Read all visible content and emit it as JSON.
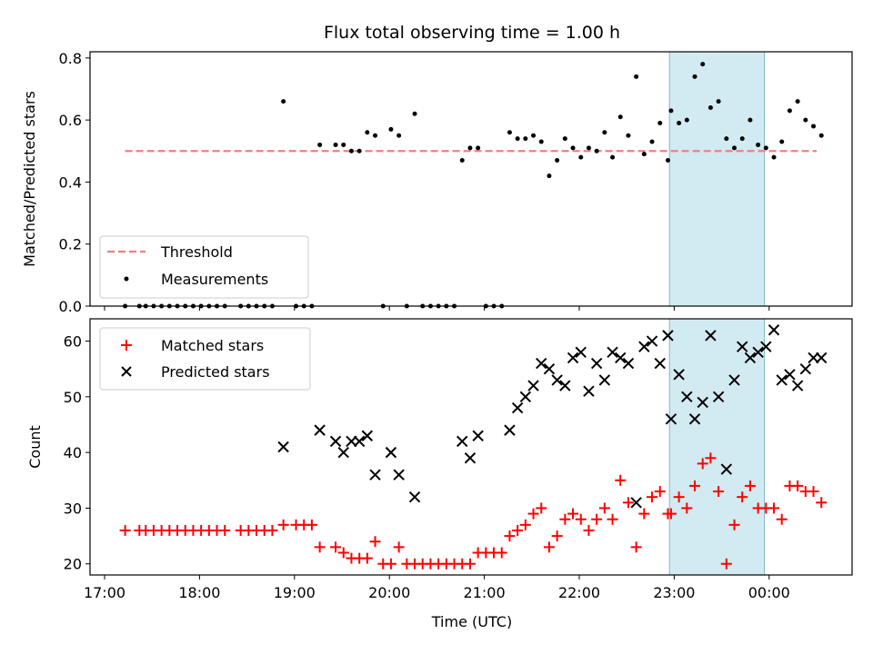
{
  "chart_data": {
    "type": "scatter",
    "title": "Flux total observing time = 1.00 h",
    "x_unit": "hours since 17:00 UTC",
    "xlabel": "Time (UTC)",
    "x_ticks": [
      "17:00",
      "18:00",
      "19:00",
      "20:00",
      "21:00",
      "22:00",
      "23:00",
      "00:00"
    ],
    "highlight": {
      "x_start": "22:57",
      "x_end": "23:57",
      "color": "#add8e6"
    },
    "top": {
      "ylabel": "Matched/Predicted stars",
      "ylim": [
        0,
        0.82
      ],
      "y_ticks": [
        "0.0",
        "0.2",
        "0.4",
        "0.6",
        "0.8"
      ],
      "legend_placement": "lower-left",
      "threshold": {
        "name": "Threshold",
        "y": 0.5,
        "x_range": [
          "17:13",
          "00:30"
        ],
        "color": "#f08080"
      },
      "measurements": {
        "name": "Measurements",
        "color": "#000000",
        "points": [
          [
            "17:13",
            0
          ],
          [
            "17:22",
            0
          ],
          [
            "17:26",
            0
          ],
          [
            "17:31",
            0
          ],
          [
            "17:36",
            0
          ],
          [
            "17:41",
            0
          ],
          [
            "17:46",
            0
          ],
          [
            "17:51",
            0
          ],
          [
            "17:56",
            0
          ],
          [
            "18:01",
            0
          ],
          [
            "18:06",
            0
          ],
          [
            "18:11",
            0
          ],
          [
            "18:16",
            0
          ],
          [
            "18:26",
            0
          ],
          [
            "18:31",
            0
          ],
          [
            "18:36",
            0
          ],
          [
            "18:41",
            0
          ],
          [
            "18:46",
            0
          ],
          [
            "18:53",
            0.66
          ],
          [
            "19:01",
            0
          ],
          [
            "19:06",
            0
          ],
          [
            "19:11",
            0
          ],
          [
            "19:16",
            0.52
          ],
          [
            "19:26",
            0.52
          ],
          [
            "19:31",
            0.52
          ],
          [
            "19:36",
            0.5
          ],
          [
            "19:41",
            0.5
          ],
          [
            "19:46",
            0.56
          ],
          [
            "19:51",
            0.55
          ],
          [
            "19:56",
            0
          ],
          [
            "20:01",
            0.57
          ],
          [
            "20:06",
            0.55
          ],
          [
            "20:11",
            0
          ],
          [
            "20:16",
            0.62
          ],
          [
            "20:21",
            0
          ],
          [
            "20:26",
            0
          ],
          [
            "20:31",
            0
          ],
          [
            "20:36",
            0
          ],
          [
            "20:41",
            0
          ],
          [
            "20:46",
            0.47
          ],
          [
            "20:51",
            0.51
          ],
          [
            "20:56",
            0.51
          ],
          [
            "21:01",
            0
          ],
          [
            "21:06",
            0
          ],
          [
            "21:11",
            0
          ],
          [
            "21:16",
            0.56
          ],
          [
            "21:21",
            0.54
          ],
          [
            "21:26",
            0.54
          ],
          [
            "21:31",
            0.55
          ],
          [
            "21:36",
            0.53
          ],
          [
            "21:41",
            0.42
          ],
          [
            "21:46",
            0.47
          ],
          [
            "21:51",
            0.54
          ],
          [
            "21:56",
            0.51
          ],
          [
            "22:01",
            0.48
          ],
          [
            "22:06",
            0.51
          ],
          [
            "22:11",
            0.5
          ],
          [
            "22:16",
            0.56
          ],
          [
            "22:21",
            0.48
          ],
          [
            "22:26",
            0.61
          ],
          [
            "22:31",
            0.55
          ],
          [
            "22:36",
            0.74
          ],
          [
            "22:41",
            0.49
          ],
          [
            "22:46",
            0.53
          ],
          [
            "22:51",
            0.59
          ],
          [
            "22:56",
            0.47
          ],
          [
            "22:58",
            0.63
          ],
          [
            "23:03",
            0.59
          ],
          [
            "23:08",
            0.6
          ],
          [
            "23:13",
            0.74
          ],
          [
            "23:18",
            0.78
          ],
          [
            "23:23",
            0.64
          ],
          [
            "23:28",
            0.66
          ],
          [
            "23:33",
            0.54
          ],
          [
            "23:38",
            0.51
          ],
          [
            "23:43",
            0.54
          ],
          [
            "23:48",
            0.6
          ],
          [
            "23:53",
            0.52
          ],
          [
            "23:58",
            0.51
          ],
          [
            "00:03",
            0.48
          ],
          [
            "00:08",
            0.53
          ],
          [
            "00:13",
            0.63
          ],
          [
            "00:18",
            0.66
          ],
          [
            "00:23",
            0.6
          ],
          [
            "00:28",
            0.58
          ],
          [
            "00:33",
            0.55
          ]
        ]
      }
    },
    "bottom": {
      "ylabel": "Count",
      "ylim": [
        18,
        64
      ],
      "y_ticks": [
        "20",
        "30",
        "40",
        "50",
        "60"
      ],
      "legend_placement": "upper-left",
      "matched": {
        "name": "Matched stars",
        "color": "#ff0000",
        "points": [
          [
            "17:13",
            26
          ],
          [
            "17:22",
            26
          ],
          [
            "17:26",
            26
          ],
          [
            "17:31",
            26
          ],
          [
            "17:36",
            26
          ],
          [
            "17:41",
            26
          ],
          [
            "17:46",
            26
          ],
          [
            "17:51",
            26
          ],
          [
            "17:56",
            26
          ],
          [
            "18:01",
            26
          ],
          [
            "18:06",
            26
          ],
          [
            "18:11",
            26
          ],
          [
            "18:16",
            26
          ],
          [
            "18:26",
            26
          ],
          [
            "18:31",
            26
          ],
          [
            "18:36",
            26
          ],
          [
            "18:41",
            26
          ],
          [
            "18:46",
            26
          ],
          [
            "18:53",
            27
          ],
          [
            "19:01",
            27
          ],
          [
            "19:06",
            27
          ],
          [
            "19:11",
            27
          ],
          [
            "19:16",
            23
          ],
          [
            "19:26",
            23
          ],
          [
            "19:31",
            22
          ],
          [
            "19:36",
            21
          ],
          [
            "19:41",
            21
          ],
          [
            "19:46",
            21
          ],
          [
            "19:51",
            24
          ],
          [
            "19:56",
            20
          ],
          [
            "20:01",
            20
          ],
          [
            "20:06",
            23
          ],
          [
            "20:11",
            20
          ],
          [
            "20:16",
            20
          ],
          [
            "20:21",
            20
          ],
          [
            "20:26",
            20
          ],
          [
            "20:31",
            20
          ],
          [
            "20:36",
            20
          ],
          [
            "20:41",
            20
          ],
          [
            "20:46",
            20
          ],
          [
            "20:51",
            20
          ],
          [
            "20:56",
            22
          ],
          [
            "21:01",
            22
          ],
          [
            "21:06",
            22
          ],
          [
            "21:11",
            22
          ],
          [
            "21:16",
            25
          ],
          [
            "21:21",
            26
          ],
          [
            "21:26",
            27
          ],
          [
            "21:31",
            29
          ],
          [
            "21:36",
            30
          ],
          [
            "21:41",
            23
          ],
          [
            "21:46",
            25
          ],
          [
            "21:51",
            28
          ],
          [
            "21:56",
            29
          ],
          [
            "22:01",
            28
          ],
          [
            "22:06",
            26
          ],
          [
            "22:11",
            28
          ],
          [
            "22:16",
            30
          ],
          [
            "22:21",
            28
          ],
          [
            "22:26",
            35
          ],
          [
            "22:31",
            31
          ],
          [
            "22:36",
            23
          ],
          [
            "22:41",
            29
          ],
          [
            "22:46",
            32
          ],
          [
            "22:51",
            33
          ],
          [
            "22:56",
            29
          ],
          [
            "22:58",
            29
          ],
          [
            "23:03",
            32
          ],
          [
            "23:08",
            30
          ],
          [
            "23:13",
            34
          ],
          [
            "23:18",
            38
          ],
          [
            "23:23",
            39
          ],
          [
            "23:28",
            33
          ],
          [
            "23:33",
            20
          ],
          [
            "23:38",
            27
          ],
          [
            "23:43",
            32
          ],
          [
            "23:48",
            34
          ],
          [
            "23:53",
            30
          ],
          [
            "23:58",
            30
          ],
          [
            "00:03",
            30
          ],
          [
            "00:08",
            28
          ],
          [
            "00:13",
            34
          ],
          [
            "00:18",
            34
          ],
          [
            "00:23",
            33
          ],
          [
            "00:28",
            33
          ],
          [
            "00:33",
            31
          ]
        ]
      },
      "predicted": {
        "name": "Predicted stars",
        "color": "#000000",
        "points": [
          [
            "18:53",
            41
          ],
          [
            "19:16",
            44
          ],
          [
            "19:26",
            42
          ],
          [
            "19:31",
            40
          ],
          [
            "19:36",
            42
          ],
          [
            "19:41",
            42
          ],
          [
            "19:46",
            43
          ],
          [
            "19:51",
            36
          ],
          [
            "20:01",
            40
          ],
          [
            "20:06",
            36
          ],
          [
            "20:16",
            32
          ],
          [
            "20:46",
            42
          ],
          [
            "20:51",
            39
          ],
          [
            "20:56",
            43
          ],
          [
            "21:16",
            44
          ],
          [
            "21:21",
            48
          ],
          [
            "21:26",
            50
          ],
          [
            "21:31",
            52
          ],
          [
            "21:36",
            56
          ],
          [
            "21:41",
            55
          ],
          [
            "21:46",
            53
          ],
          [
            "21:51",
            52
          ],
          [
            "21:56",
            57
          ],
          [
            "22:01",
            58
          ],
          [
            "22:06",
            51
          ],
          [
            "22:11",
            56
          ],
          [
            "22:16",
            53
          ],
          [
            "22:21",
            58
          ],
          [
            "22:26",
            57
          ],
          [
            "22:31",
            56
          ],
          [
            "22:36",
            31
          ],
          [
            "22:41",
            59
          ],
          [
            "22:46",
            60
          ],
          [
            "22:51",
            56
          ],
          [
            "22:56",
            61
          ],
          [
            "22:58",
            46
          ],
          [
            "23:03",
            54
          ],
          [
            "23:08",
            50
          ],
          [
            "23:13",
            46
          ],
          [
            "23:18",
            49
          ],
          [
            "23:23",
            61
          ],
          [
            "23:28",
            50
          ],
          [
            "23:33",
            37
          ],
          [
            "23:38",
            53
          ],
          [
            "23:43",
            59
          ],
          [
            "23:48",
            57
          ],
          [
            "23:53",
            58
          ],
          [
            "23:58",
            59
          ],
          [
            "00:03",
            62
          ],
          [
            "00:08",
            53
          ],
          [
            "00:13",
            54
          ],
          [
            "00:18",
            52
          ],
          [
            "00:23",
            55
          ],
          [
            "00:28",
            57
          ],
          [
            "00:33",
            57
          ]
        ]
      }
    }
  }
}
